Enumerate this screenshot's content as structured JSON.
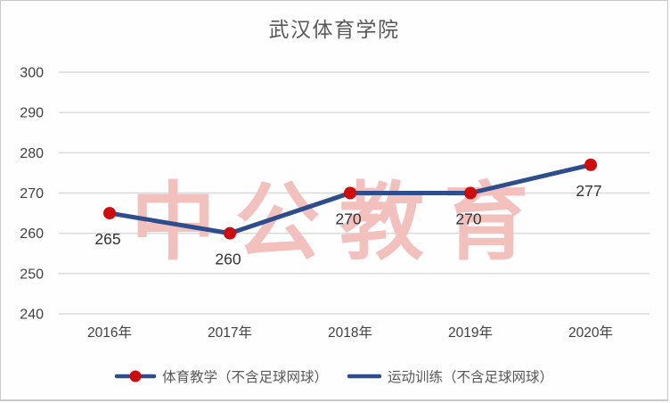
{
  "watermark": {
    "text": "中公教育",
    "color": "#f2c0bd"
  },
  "colors": {
    "line": "#2e4d8c",
    "marker": "#d00b0b",
    "grid": "#d9d9d9",
    "axis_label": "#404040",
    "data_label": "#333333",
    "title": "#595959",
    "legend_text": "#595959",
    "frame_border": "#c9c9c9"
  },
  "chart_data": {
    "type": "line",
    "title": "武汉体育学院",
    "categories": [
      "2016年",
      "2017年",
      "2018年",
      "2019年",
      "2020年"
    ],
    "series": [
      {
        "name": "体育教学（不含足球网球）",
        "values": [
          265,
          260,
          270,
          270,
          277
        ],
        "data_labels": [
          "265",
          "260",
          "270",
          "270",
          "277"
        ],
        "markers": true
      }
    ],
    "legend_entries": [
      {
        "label": "体育教学（不含足球网球）",
        "show_marker": true
      },
      {
        "label": "运动训练（不含足球网球）",
        "show_marker": false
      }
    ],
    "ylim": [
      240,
      300
    ],
    "yticks": [
      300,
      290,
      280,
      270,
      260,
      250,
      240
    ],
    "xlabel": "",
    "ylabel": "",
    "grid": true,
    "legend_position": "bottom"
  }
}
